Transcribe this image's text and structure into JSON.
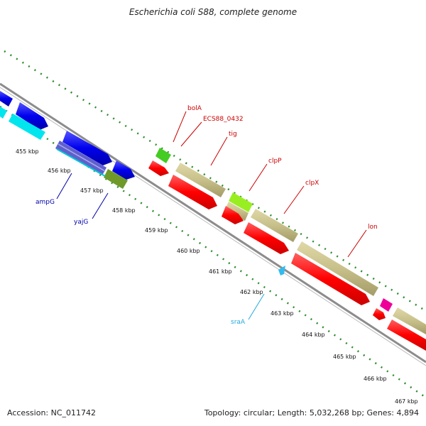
{
  "title": "Escherichia coli S88, complete genome",
  "footer": {
    "accession": "Accession: NC_011742",
    "summary": "Topology: circular; Length: 5,032,268 bp; Genes: 4,894"
  },
  "colors": {
    "backbone": "#8c8c8c",
    "tick": "#2e8b2e",
    "forward_label": "#cc0000",
    "reverse_label": "#0000aa",
    "rna_label": "#22aadd",
    "cds": "#ff0000",
    "gene_khaki": "#c8c08a",
    "blue_gene": "#0000ee",
    "cyan_gene": "#00e5ee",
    "olive_gene": "#6f9a2a",
    "green_gene": "#44cc22",
    "lime_gene": "#99ee22",
    "magenta_gene": "#ee0099"
  },
  "kbp_ticks": [
    "455 kbp",
    "456 kbp",
    "457 kbp",
    "458 kbp",
    "459 kbp",
    "460 kbp",
    "461 kbp",
    "462 kbp",
    "463 kbp",
    "464 kbp",
    "465 kbp",
    "466 kbp",
    "467 kbp"
  ],
  "gene_labels_forward": [
    "bolA",
    "ECS88_0432",
    "tig",
    "clpP",
    "clpX",
    "lon"
  ],
  "gene_labels_reverse": [
    "ampG",
    "yajG"
  ],
  "gene_labels_rna": [
    "sraA"
  ]
}
